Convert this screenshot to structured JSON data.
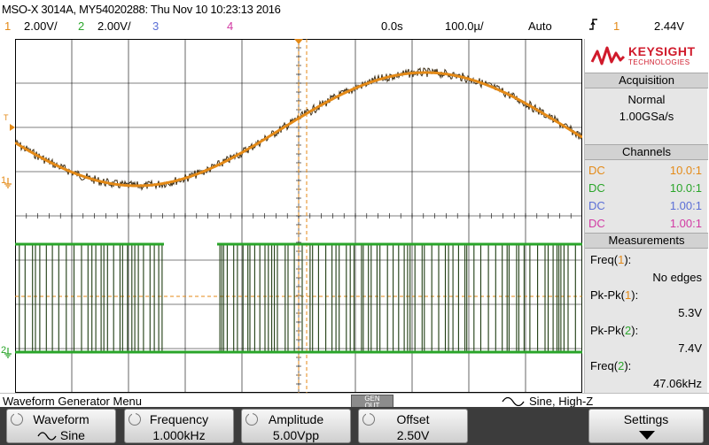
{
  "header": {
    "title": "MSO-X 3014A, MY54020288: Thu Nov 10 10:23:13 2016",
    "ch1_num": "1",
    "ch1_scale": "2.00V/",
    "ch2_num": "2",
    "ch2_scale": "2.00V/",
    "ch3_num": "3",
    "ch4_num": "4",
    "time_offset": "0.0s",
    "time_scale": "100.0µ/",
    "trigger_mode": "Auto",
    "trigger_source": "1",
    "trigger_level": "2.44V"
  },
  "screen": {
    "ch1_label": "1",
    "ch2_label": "2",
    "trigger_label": "T"
  },
  "panel": {
    "brand": "KEYSIGHT",
    "brand_sub": "TECHNOLOGIES",
    "acquisition_title": "Acquisition",
    "acq_mode": "Normal",
    "sample_rate": "1.00GSa/s",
    "channels_title": "Channels",
    "channels": [
      {
        "coupling": "DC",
        "probe": "10.0:1"
      },
      {
        "coupling": "DC",
        "probe": "10.0:1"
      },
      {
        "coupling": "DC",
        "probe": "1.00:1"
      },
      {
        "coupling": "DC",
        "probe": "1.00:1"
      }
    ],
    "measurements_title": "Measurements",
    "measurements": [
      {
        "name": "Freq",
        "ch": "1",
        "value": "No edges"
      },
      {
        "name": "Pk-Pk",
        "ch": "1",
        "value": "5.3V"
      },
      {
        "name": "Pk-Pk",
        "ch": "2",
        "value": "7.4V"
      },
      {
        "name": "Freq",
        "ch": "2",
        "value": "47.06kHz"
      }
    ]
  },
  "menubar": {
    "title": "Waveform Generator Menu",
    "gen_out_line1": "GEN",
    "gen_out_line2": "OUT",
    "wave_status": "Sine, High-Z"
  },
  "softkeys": {
    "waveform_label": "Waveform",
    "waveform_value": "Sine",
    "frequency_label": "Frequency",
    "frequency_value": "1.000kHz",
    "amplitude_label": "Amplitude",
    "amplitude_value": "5.00Vpp",
    "offset_label": "Offset",
    "offset_value": "2.50V",
    "settings_label": "Settings"
  },
  "colors": {
    "ch1": "#e48a17",
    "ch2": "#2aa52a",
    "ch3": "#5b6fd6",
    "ch4": "#d23aa3",
    "brand": "#d01a2b"
  }
}
